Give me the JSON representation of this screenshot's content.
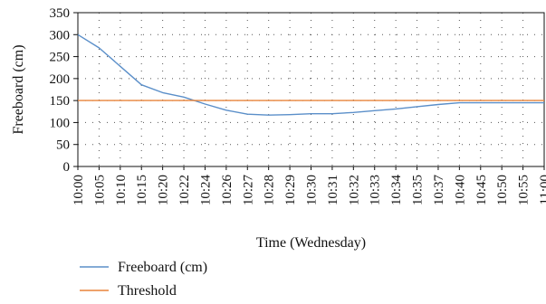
{
  "chart_data": {
    "type": "line",
    "xlabel": "Time (Wednesday)",
    "ylabel": "Freeboard (cm)",
    "ylim": [
      0,
      350
    ],
    "yticks": [
      0,
      50,
      100,
      150,
      200,
      250,
      300,
      350
    ],
    "grid": "dotted",
    "legend_position": "bottom-left",
    "categories": [
      "10:00",
      "10:05",
      "10:10",
      "10:15",
      "10:20",
      "10:22",
      "10:24",
      "10:26",
      "10:27",
      "10:28",
      "10:29",
      "10:30",
      "10:31",
      "10:32",
      "10:33",
      "10:34",
      "10:35",
      "10:37",
      "10:40",
      "10:45",
      "10:50",
      "10:55",
      "11:00"
    ],
    "series": [
      {
        "name": "Freeboard (cm)",
        "color": "#5b8fc9",
        "values": [
          300,
          270,
          228,
          186,
          168,
          158,
          142,
          128,
          119,
          117,
          118,
          120,
          120,
          123,
          127,
          131,
          136,
          141,
          145,
          145,
          145,
          145,
          145
        ]
      },
      {
        "name": "Threshold",
        "color": "#e8843a",
        "values": [
          150,
          150,
          150,
          150,
          150,
          150,
          150,
          150,
          150,
          150,
          150,
          150,
          150,
          150,
          150,
          150,
          150,
          150,
          150,
          150,
          150,
          150,
          150
        ]
      }
    ]
  }
}
